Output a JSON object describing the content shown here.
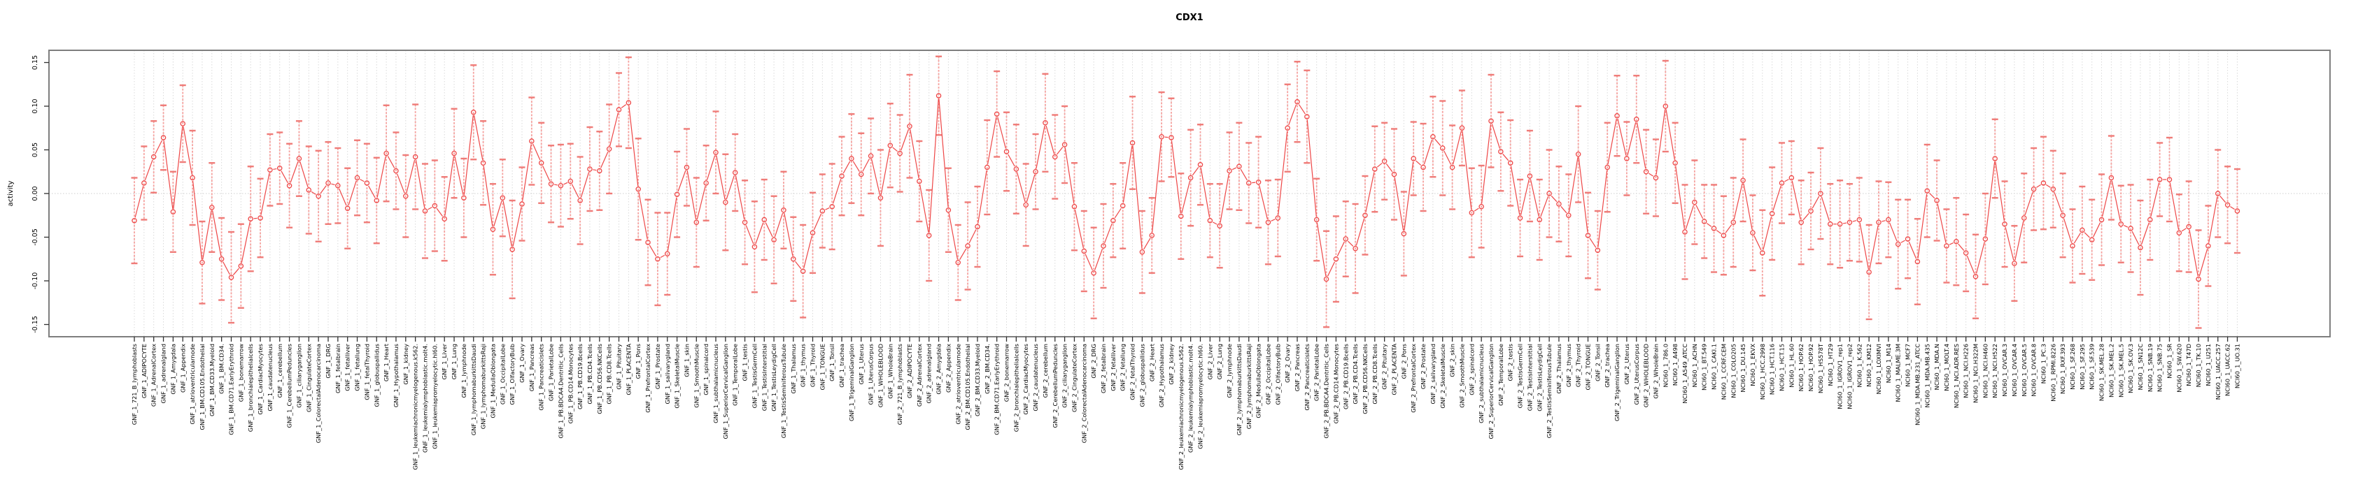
{
  "chart_data": {
    "type": "line",
    "title": "CDX1",
    "ylabel": "activity",
    "xlabel": "",
    "ylim": [
      -0.164,
      0.164
    ],
    "yticks": [
      -0.15,
      -0.1,
      -0.05,
      0.0,
      0.05,
      0.1,
      0.15
    ],
    "grid": "vertical dotted gridline at every category; dotted zero line",
    "legend_position": "none",
    "marker": "open-circle",
    "series_color": "#ee4646",
    "errorbar_stem_color": "#f6a19e",
    "errorbar_cap_color": "#ef7b78",
    "gridline_color": "#d9d9d9",
    "box_color": "#7e7e7e",
    "categories": [
      "GNF_1_721_B_lymphoblasts",
      "GNF_1_ADIPOCYTE",
      "GNF_1_AdrenalCortex",
      "GNF_1_adrenalgland",
      "GNF_1_Amygdala",
      "GNF_1_Appendix",
      "GNF_1_atrioventricularnode",
      "GNF_1_BM.CD105.Endothelial",
      "GNF_1_BM.CD33.Myeloid",
      "GNF_1_BM.CD34.",
      "GNF_1_BM.CD71.EarlyErythroid",
      "GNF_1_bonemarrow",
      "GNF_1_bronchialepithelialcells",
      "GNF_1_CardiacMyocytes",
      "GNF_1_caudatenucleus",
      "GNF_1_cerebellum",
      "GNF_1_CerebellumPeduncles",
      "GNF_1_ciliaryganglion",
      "GNF_1_CingulateCortex",
      "GNF_1_ColorectalAdenocarcinoma",
      "GNF_1_DRG",
      "GNF_1_fetalbrain",
      "GNF_1_fetalliver",
      "GNF_1_fetallung",
      "GNF_1_fetalThyroid",
      "GNF_1_globuspallidus",
      "GNF_1_Heart",
      "GNF_1_Hypothalamus",
      "GNF_1_kidney",
      "GNF_1_leukemiachronicmyelogenous.k562.",
      "GNF_1_leukemialymphoblastic.molt4.",
      "GNF_1_leukemiapromyelocytic.hl60.",
      "GNF_1_Liver",
      "GNF_1_Lung",
      "GNF_1_lymphnode",
      "GNF_1_lymphomaburkittsDaudi",
      "GNF_1_lymphomaburkittsRaji",
      "GNF_1_MedullaOblongata",
      "GNF_1_OccipitalLobe",
      "GNF_1_OlfactoryBulb",
      "GNF_1_Ovary",
      "GNF_1_Pancreas",
      "GNF_1_Pancreaticislets",
      "GNF_1_ParietalLobe",
      "GNF_1_PB.BDCA4.Dentritic_Cells",
      "GNF_1_PB.CD14.Monocytes",
      "GNF_1_PB.CD19.Bcells",
      "GNF_1_PB.CD4.Tcells",
      "GNF_1_PB.CD56.NKCells",
      "GNF_1_PB.CD8.Tcells",
      "GNF_1_Pituitary",
      "GNF_1_PLACENTA",
      "GNF_1_Pons",
      "GNF_1_PrefrontalCortex",
      "GNF_1_Prostate",
      "GNF_1_salivarygland",
      "GNF_1_SkeletalMuscle",
      "GNF_1_skin",
      "GNF_1_SmoothMuscle",
      "GNF_1_spinalcord",
      "GNF_1_subthalamicnucleus",
      "GNF_1_SuperiorCervicalGanglion",
      "GNF_1_TemporalLobe",
      "GNF_1_testis",
      "GNF_1_TestisGermCell",
      "GNF_1_TestisInterstitial",
      "GNF_1_TestisLeydigCell",
      "GNF_1_TestisSeminiferousTubule",
      "GNF_1_Thalamus",
      "GNF_1_thymus",
      "GNF_1_Thyroid",
      "GNF_1_TONGUE",
      "GNF_1_Tonsil",
      "GNF_1_trachea",
      "GNF_1_TrigeminalGanglion",
      "GNF_1_Uterus",
      "GNF_1_UterusCorpus",
      "GNF_1_WHOLEBLOOD",
      "GNF_1_WholeBrain",
      "GNF_2_721_B_lymphoblasts",
      "GNF_2_ADIPOCYTE",
      "GNF_2_AdrenalCortex",
      "GNF_2_adrenalgland",
      "GNF_2_Amygdala",
      "GNF_2_Appendix",
      "GNF_2_atrioventricularnode",
      "GNF_2_BM.CD105.Endothelial",
      "GNF_2_BM.CD33.Myeloid",
      "GNF_2_BM.CD34.",
      "GNF_2_BM.CD71.EarlyErythroid",
      "GNF_2_bonemarrow",
      "GNF_2_bronchialepithelialcells",
      "GNF_2_CardiacMyocytes",
      "GNF_2_caudatenucleus",
      "GNF_2_cerebellum",
      "GNF_2_CerebellumPeduncles",
      "GNF_2_ciliaryganglion",
      "GNF_2_CingulateCortex",
      "GNF_2_ColorectalAdenocarcinoma",
      "GNF_2_DRG",
      "GNF_2_fetalbrain",
      "GNF_2_fetalliver",
      "GNF_2_fetallung",
      "GNF_2_fetalThyroid",
      "GNF_2_globuspallidus",
      "GNF_2_Heart",
      "GNF_2_Hypothalamus",
      "GNF_2_kidney",
      "GNF_2_leukemiachronicmyelogenous.k562.",
      "GNF_2_leukemialymphoblastic.molt4.",
      "GNF_2_leukemiapromyelocytic.hl60.",
      "GNF_2_Liver",
      "GNF_2_Lung",
      "GNF_2_lymphnode",
      "GNF_2_lymphomaburkittsDaudi",
      "GNF_2_lymphomaburkittsRaji",
      "GNF_2_MedullaOblongata",
      "GNF_2_OccipitalLobe",
      "GNF_2_OlfactoryBulb",
      "GNF_2_Ovary",
      "GNF_2_Pancreas",
      "GNF_2_Pancreaticislets",
      "GNF_2_ParietalLobe",
      "GNF_2_PB.BDCA4.Dentritic_Cells",
      "GNF_2_PB.CD14.Monocytes",
      "GNF_2_PB.CD19.Bcells",
      "GNF_2_PB.CD4.Tcells",
      "GNF_2_PB.CD56.NKCells",
      "GNF_2_PB.CD8.Tcells",
      "GNF_2_Pituitary",
      "GNF_2_PLACENTA",
      "GNF_2_Pons",
      "GNF_2_PrefrontalCortex",
      "GNF_2_Prostate",
      "GNF_2_salivarygland",
      "GNF_2_SkeletalMuscle",
      "GNF_2_skin",
      "GNF_2_SmoothMuscle",
      "GNF_2_spinalcord",
      "GNF_2_subthalamicnucleus",
      "GNF_2_SuperiorCervicalGanglion",
      "GNF_2_TemporalLobe",
      "GNF_2_testis",
      "GNF_2_TestisGermCell",
      "GNF_2_TestisInterstitial",
      "GNF_2_TestisLeydigCell",
      "GNF_2_TestisSeminiferousTubule",
      "GNF_2_Thalamus",
      "GNF_2_thymus",
      "GNF_2_Thyroid",
      "GNF_2_TONGUE",
      "GNF_2_Tonsil",
      "GNF_2_trachea",
      "GNF_2_TrigeminalGanglion",
      "GNF_2_Uterus",
      "GNF_2_UterusCorpus",
      "GNF_2_WHOLEBLOOD",
      "GNF_2_WholeBrain",
      "NCI60_1_786.0",
      "NCI60_1_A498",
      "NCI60_1_A549_ATCC",
      "NCI60_1_ACHN",
      "NCI60_1_BT.549",
      "NCI60_1_CAKI.1",
      "NCI60_1_CCRF.CEM",
      "NCI60_1_COLO205",
      "NCI60_1_DU.145",
      "NCI60_1_EKVX",
      "NCI60_1_HCC.2998",
      "NCI60_1_HCT.116",
      "NCI60_1_HCT.15",
      "NCI60_1_HL.60",
      "NCI60_1_HOP.62",
      "NCI60_1_HOP.92",
      "NCI60_1_HS578T",
      "NCI60_1_HT29",
      "NCI60_1_IGROV1_rep1",
      "NCI60_1_IGROV1_rep2",
      "NCI60_1_K.562",
      "NCI60_1_KM12",
      "NCI60_1_LOXIMVI",
      "NCI60_1_M14",
      "NCI60_1_MALME.3M",
      "NCI60_1_MCF7",
      "NCI60_1_MDA.MB.231_ATCC",
      "NCI60_1_MDA.MB.435",
      "NCI60_1_MDA.N",
      "NCI60_1_MOLT.4",
      "NCI60_1_NCI.ADR.RES",
      "NCI60_1_NCI.H226",
      "NCI60_1_NCI.H322M",
      "NCI60_1_NCI.H460",
      "NCI60_1_NCI.H522",
      "NCI60_1_OVCAR.3",
      "NCI60_1_OVCAR.4",
      "NCI60_1_OVCAR.5",
      "NCI60_1_OVCAR.8",
      "NCI60_1_PC.3",
      "NCI60_1_RPMI.8226",
      "NCI60_1_RXF.393",
      "NCI60_1_SF.268",
      "NCI60_1_SF.295",
      "NCI60_1_SF.539",
      "NCI60_1_SK.MEL.28",
      "NCI60_1_SK.MEL.2",
      "NCI60_1_SK.MEL.5",
      "NCI60_1_SK.OV.3",
      "NCI60_1_SN12C",
      "NCI60_1_SNB.19",
      "NCI60_1_SNB.75",
      "NCI60_1_SR",
      "NCI60_1_SW.620",
      "NCI60_1_T47D",
      "NCI60_1_TK.10",
      "NCI60_1_U251",
      "NCI60_1_UACC.257",
      "NCI60_1_UACC.62",
      "NCI60_1_UO.31"
    ],
    "values": [
      -0.031,
      0.012,
      0.042,
      0.064,
      -0.021,
      0.08,
      0.018,
      -0.079,
      -0.016,
      -0.075,
      -0.096,
      -0.083,
      -0.029,
      -0.028,
      0.027,
      0.029,
      0.009,
      0.04,
      0.004,
      -0.003,
      0.012,
      0.009,
      -0.017,
      0.018,
      0.012,
      -0.008,
      0.046,
      0.026,
      -0.003,
      0.042,
      -0.02,
      -0.014,
      -0.029,
      0.046,
      -0.005,
      0.093,
      0.035,
      -0.041,
      -0.005,
      -0.064,
      -0.012,
      0.06,
      0.035,
      0.011,
      0.009,
      0.014,
      -0.008,
      0.028,
      0.026,
      0.051,
      0.096,
      0.104,
      0.005,
      -0.056,
      -0.075,
      -0.069,
      -0.001,
      0.03,
      -0.033,
      0.012,
      0.047,
      -0.01,
      0.024,
      -0.033,
      -0.061,
      -0.03,
      -0.053,
      -0.019,
      -0.075,
      -0.089,
      -0.045,
      -0.02,
      -0.015,
      0.02,
      0.04,
      0.022,
      0.043,
      -0.005,
      0.055,
      0.046,
      0.077,
      0.014,
      -0.048,
      0.112,
      -0.019,
      -0.079,
      -0.06,
      -0.038,
      0.03,
      0.091,
      0.048,
      0.028,
      -0.013,
      0.025,
      0.081,
      0.042,
      0.056,
      -0.015,
      -0.066,
      -0.091,
      -0.06,
      -0.031,
      -0.014,
      0.058,
      -0.067,
      -0.048,
      0.065,
      0.064,
      -0.026,
      0.018,
      0.033,
      -0.031,
      -0.037,
      0.026,
      0.031,
      0.012,
      0.013,
      -0.033,
      -0.028,
      0.075,
      0.105,
      0.088,
      -0.03,
      -0.098,
      -0.075,
      -0.052,
      -0.063,
      -0.025,
      0.028,
      0.037,
      0.022,
      -0.046,
      0.04,
      0.03,
      0.065,
      0.052,
      0.03,
      0.075,
      -0.022,
      -0.015,
      0.083,
      0.048,
      0.035,
      -0.028,
      0.02,
      -0.03,
      0.0,
      -0.012,
      -0.025,
      0.045,
      -0.048,
      -0.065,
      0.03,
      0.089,
      0.04,
      0.085,
      0.025,
      0.018,
      0.1,
      0.035,
      -0.044,
      -0.01,
      -0.032,
      -0.04,
      -0.048,
      -0.033,
      0.015,
      -0.045,
      -0.068,
      -0.023,
      0.012,
      0.018,
      -0.033,
      -0.02,
      0.0,
      -0.035,
      -0.035,
      -0.033,
      -0.03,
      -0.09,
      -0.033,
      -0.03,
      -0.058,
      -0.052,
      -0.078,
      0.003,
      -0.008,
      -0.06,
      -0.055,
      -0.068,
      -0.095,
      -0.052,
      0.04,
      -0.035,
      -0.08,
      -0.028,
      0.005,
      0.012,
      0.005,
      -0.025,
      -0.06,
      -0.042,
      -0.053,
      -0.03,
      0.018,
      -0.035,
      -0.04,
      -0.062,
      -0.03,
      0.016,
      0.016,
      -0.045,
      -0.038,
      -0.098,
      -0.06,
      0.0,
      -0.013,
      -0.02
    ],
    "errors": [
      0.049,
      0.042,
      0.041,
      0.037,
      0.046,
      0.044,
      0.054,
      0.047,
      0.051,
      0.047,
      0.052,
      0.048,
      0.06,
      0.045,
      0.041,
      0.041,
      0.048,
      0.043,
      0.05,
      0.052,
      0.047,
      0.043,
      0.046,
      0.043,
      0.045,
      0.049,
      0.055,
      0.044,
      0.047,
      0.06,
      0.054,
      0.052,
      0.048,
      0.051,
      0.045,
      0.054,
      0.048,
      0.052,
      0.044,
      0.056,
      0.042,
      0.05,
      0.046,
      0.044,
      0.047,
      0.043,
      0.05,
      0.048,
      0.045,
      0.051,
      0.042,
      0.052,
      0.058,
      0.049,
      0.053,
      0.047,
      0.049,
      0.044,
      0.051,
      0.043,
      0.047,
      0.055,
      0.044,
      0.048,
      0.052,
      0.046,
      0.05,
      0.044,
      0.048,
      0.053,
      0.046,
      0.042,
      0.049,
      0.045,
      0.051,
      0.047,
      0.043,
      0.055,
      0.048,
      0.044,
      0.059,
      0.046,
      0.052,
      0.045,
      0.048,
      0.043,
      0.05,
      0.046,
      0.054,
      0.049,
      0.045,
      0.051,
      0.047,
      0.043,
      0.056,
      0.048,
      0.044,
      0.05,
      0.046,
      0.052,
      0.048,
      0.042,
      0.049,
      0.053,
      0.047,
      0.043,
      0.051,
      0.045,
      0.049,
      0.055,
      0.046,
      0.042,
      0.048,
      0.044,
      0.05,
      0.046,
      0.052,
      0.048,
      0.044,
      0.05,
      0.046,
      0.053,
      0.047,
      0.055,
      0.049,
      0.043,
      0.051,
      0.045,
      0.049,
      0.044,
      0.052,
      0.048,
      0.042,
      0.05,
      0.046,
      0.054,
      0.048,
      0.043,
      0.051,
      0.047,
      0.053,
      0.045,
      0.049,
      0.044,
      0.052,
      0.046,
      0.05,
      0.043,
      0.047,
      0.055,
      0.049,
      0.045,
      0.051,
      0.046,
      0.042,
      0.05,
      0.048,
      0.044,
      0.052,
      0.046,
      0.054,
      0.048,
      0.042,
      0.05,
      0.045,
      0.051,
      0.047,
      0.043,
      0.049,
      0.053,
      0.046,
      0.042,
      0.048,
      0.044,
      0.052,
      0.046,
      0.05,
      0.044,
      0.048,
      0.054,
      0.047,
      0.043,
      0.051,
      0.045,
      0.049,
      0.053,
      0.046,
      0.042,
      0.05,
      0.044,
      0.048,
      0.052,
      0.045,
      0.049,
      0.043,
      0.051,
      0.047,
      0.053,
      0.044,
      0.048,
      0.042,
      0.05,
      0.046,
      0.052,
      0.048,
      0.044,
      0.05,
      0.054,
      0.046,
      0.042,
      0.048,
      0.044,
      0.052,
      0.056,
      0.046,
      0.05,
      0.044,
      0.048
    ]
  }
}
